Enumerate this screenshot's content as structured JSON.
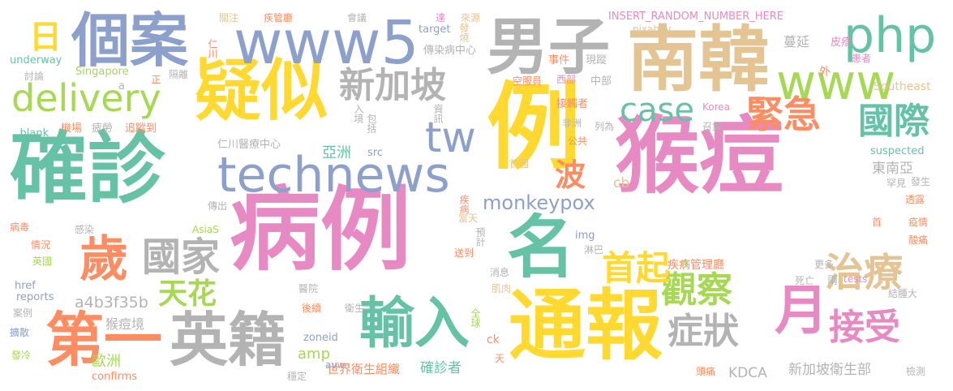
{
  "colors": {
    "pink": "#e78ac3",
    "teal": "#66c2a5",
    "orange": "#fc8d62",
    "blue": "#8da0cb",
    "green": "#a6d854",
    "yellow": "#ffd92f",
    "tan": "#e5c494",
    "gray": "#b3b3b3"
  },
  "words": [
    {
      "text": "猴痘"
    },
    {
      "text": "病例"
    },
    {
      "text": "確診"
    },
    {
      "text": "例"
    },
    {
      "text": "通報"
    },
    {
      "text": "南韓"
    },
    {
      "text": "疑似"
    },
    {
      "text": "technews"
    },
    {
      "text": "www5"
    },
    {
      "text": "個案"
    },
    {
      "text": "男子"
    },
    {
      "text": "第一"
    },
    {
      "text": "英籍"
    },
    {
      "text": "名"
    },
    {
      "text": "輸入"
    },
    {
      "text": "php"
    },
    {
      "text": "www"
    },
    {
      "text": "tw"
    },
    {
      "text": "新加坡"
    },
    {
      "text": "delivery"
    },
    {
      "text": "歲"
    },
    {
      "text": "月"
    },
    {
      "text": "國家"
    },
    {
      "text": "緊急"
    },
    {
      "text": "國際"
    },
    {
      "text": "case"
    },
    {
      "text": "觀察"
    },
    {
      "text": "治療"
    },
    {
      "text": "接受"
    },
    {
      "text": "症狀"
    },
    {
      "text": "首起"
    },
    {
      "text": "天花"
    },
    {
      "text": "波"
    },
    {
      "text": "日"
    },
    {
      "text": "monkeypox"
    },
    {
      "text": "a4b3f35b"
    },
    {
      "text": "猴痘境"
    },
    {
      "text": "歐洲"
    },
    {
      "text": "amp"
    },
    {
      "text": "確診者"
    },
    {
      "text": "亞洲"
    },
    {
      "text": "東南亞"
    },
    {
      "text": "新加坡衛生部"
    },
    {
      "text": "KDCA"
    },
    {
      "text": "世界衛生組織"
    },
    {
      "text": "疾病管理廳"
    },
    {
      "text": "INSERT_RANDOM_NUMBER_HERE"
    },
    {
      "text": "仁川醫療中心"
    },
    {
      "text": "傳染病中心"
    },
    {
      "text": "Singapore"
    },
    {
      "text": "underway"
    },
    {
      "text": "_blank"
    },
    {
      "text": "Southeast"
    },
    {
      "text": "suspected"
    },
    {
      "text": "reports"
    },
    {
      "text": "confirms"
    },
    {
      "text": "href"
    },
    {
      "text": "zoneid"
    },
    {
      "text": "tests"
    },
    {
      "text": "pixabay"
    },
    {
      "text": "target"
    },
    {
      "text": "Korea"
    },
    {
      "text": "AsiaS"
    },
    {
      "text": "src"
    },
    {
      "text": "img"
    },
    {
      "text": "avw"
    },
    {
      "text": "ck"
    },
    {
      "text": "cb"
    },
    {
      "text": "n"
    },
    {
      "text": "a"
    },
    {
      "text": "關注"
    },
    {
      "text": "疾管廳"
    },
    {
      "text": "會議"
    },
    {
      "text": "達"
    },
    {
      "text": "來源"
    },
    {
      "text": "發燒"
    },
    {
      "text": "蔓延"
    },
    {
      "text": "皮疹"
    },
    {
      "text": "患者"
    },
    {
      "text": "外"
    },
    {
      "text": "事件"
    },
    {
      "text": "現蹤"
    },
    {
      "text": "西部"
    },
    {
      "text": "中部"
    },
    {
      "text": "空服員"
    },
    {
      "text": "接觸者"
    },
    {
      "text": "入境"
    },
    {
      "text": "資訊"
    },
    {
      "text": "包括"
    },
    {
      "text": "機場"
    },
    {
      "text": "疲勞"
    },
    {
      "text": "追蹤到"
    },
    {
      "text": "非洲"
    },
    {
      "text": "列為"
    },
    {
      "text": "召集"
    },
    {
      "text": "公共"
    },
    {
      "text": "隔離"
    },
    {
      "text": "正"
    },
    {
      "text": "討論"
    },
    {
      "text": "仁川"
    },
    {
      "text": "首圖"
    },
    {
      "text": "傳出"
    },
    {
      "text": "疾病"
    },
    {
      "text": "預計"
    },
    {
      "text": "當天"
    },
    {
      "text": "罕見"
    },
    {
      "text": "發生"
    },
    {
      "text": "透露"
    },
    {
      "text": "疫情"
    },
    {
      "text": "酸痛"
    },
    {
      "text": "首"
    },
    {
      "text": "病毒"
    },
    {
      "text": "感染"
    },
    {
      "text": "情況"
    },
    {
      "text": "英國"
    },
    {
      "text": "淋巴"
    },
    {
      "text": "送到"
    },
    {
      "text": "消息"
    },
    {
      "text": "肌肉"
    },
    {
      "text": "醫院"
    },
    {
      "text": "更多"
    },
    {
      "text": "死亡"
    },
    {
      "text": "兩"
    },
    {
      "text": "結腫大"
    },
    {
      "text": "後續"
    },
    {
      "text": "衛生"
    },
    {
      "text": "全球"
    },
    {
      "text": "案例"
    },
    {
      "text": "擴散"
    },
    {
      "text": "發冷"
    },
    {
      "text": "穩定"
    },
    {
      "text": "天"
    },
    {
      "text": "頭痛"
    },
    {
      "text": "檢測"
    }
  ]
}
